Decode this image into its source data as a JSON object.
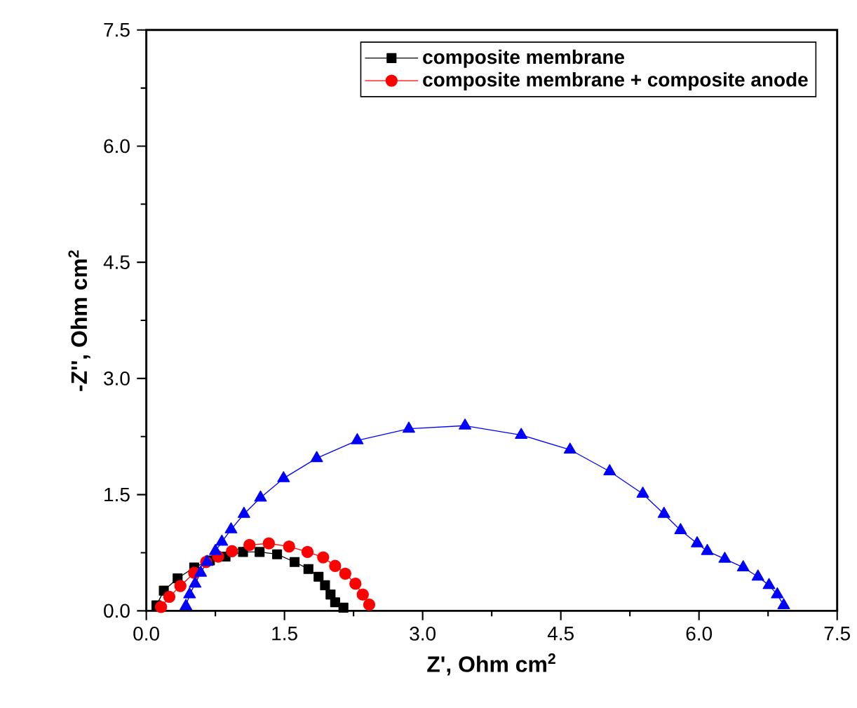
{
  "chart_data": {
    "type": "line",
    "xlabel": "Z', Ohm cm$^{2}$",
    "ylabel": "-Z'', Ohm cm$^{2}$",
    "xlim": [
      0,
      7.5
    ],
    "ylim": [
      0,
      7.5
    ],
    "xticks": [
      {
        "value": 0,
        "label": "0.0"
      },
      {
        "value": 1.5,
        "label": "1.5"
      },
      {
        "value": 3,
        "label": "3.0"
      },
      {
        "value": 4.5,
        "label": "4.5"
      },
      {
        "value": 6,
        "label": "6.0"
      },
      {
        "value": 7.5,
        "label": "7.5"
      }
    ],
    "yticks": [
      {
        "value": 0,
        "label": "0.0"
      },
      {
        "value": 1.5,
        "label": "1.5"
      },
      {
        "value": 3,
        "label": "3.0"
      },
      {
        "value": 4.5,
        "label": "4.5"
      },
      {
        "value": 6,
        "label": "6.0"
      },
      {
        "value": 7.5,
        "label": "7.5"
      }
    ],
    "legend": "top right",
    "line_style": "solid",
    "series": [
      {
        "name": "composite membrane",
        "color": "#000000",
        "marker": "square",
        "x": [
          0.11,
          0.19,
          0.34,
          0.52,
          0.69,
          0.86,
          1.05,
          1.23,
          1.42,
          1.61,
          1.76,
          1.87,
          1.94,
          2.0,
          2.05,
          2.14
        ],
        "values": [
          0.07,
          0.26,
          0.42,
          0.56,
          0.65,
          0.7,
          0.76,
          0.76,
          0.73,
          0.63,
          0.54,
          0.44,
          0.33,
          0.21,
          0.11,
          0.04
        ]
      },
      {
        "name": "composite membrane + composite anode",
        "color": "#ff0000",
        "marker": "circle",
        "x": [
          0.16,
          0.25,
          0.37,
          0.52,
          0.65,
          0.78,
          0.93,
          1.12,
          1.33,
          1.55,
          1.75,
          1.92,
          2.05,
          2.16,
          2.27,
          2.35,
          2.42
        ],
        "values": [
          0.05,
          0.18,
          0.32,
          0.49,
          0.63,
          0.7,
          0.77,
          0.85,
          0.87,
          0.83,
          0.76,
          0.69,
          0.58,
          0.48,
          0.35,
          0.21,
          0.08
        ]
      },
      {
        "color": "#0000ff",
        "marker": "triangle",
        "x": [
          0.43,
          0.47,
          0.53,
          0.59,
          0.66,
          0.75,
          0.82,
          0.92,
          1.06,
          1.24,
          1.49,
          1.85,
          2.29,
          2.85,
          3.46,
          4.07,
          4.6,
          5.03,
          5.39,
          5.62,
          5.8,
          5.98,
          6.09,
          6.28,
          6.48,
          6.64,
          6.76,
          6.85,
          6.92
        ],
        "values": [
          0.06,
          0.21,
          0.35,
          0.49,
          0.63,
          0.77,
          0.89,
          1.05,
          1.25,
          1.46,
          1.71,
          1.97,
          2.2,
          2.35,
          2.39,
          2.27,
          2.08,
          1.8,
          1.51,
          1.25,
          1.04,
          0.87,
          0.77,
          0.67,
          0.56,
          0.44,
          0.33,
          0.21,
          0.07
        ]
      }
    ]
  }
}
